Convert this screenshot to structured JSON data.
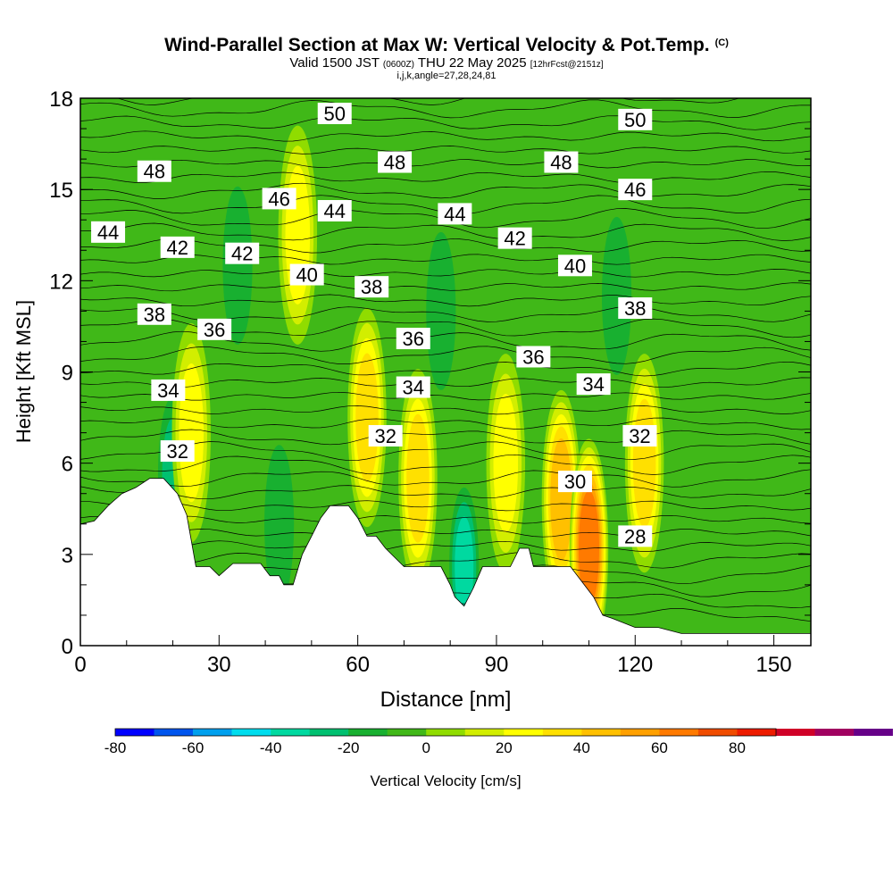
{
  "title": {
    "main": "Wind-Parallel Section at Max W: Vertical Velocity & Pot.Temp.",
    "copyright": "(C)",
    "valid_prefix": "Valid 1500 JST",
    "valid_utc": "(0600Z)",
    "valid_day": "THU 22 May 2025",
    "forecast": "[12hrFcst@2151z]",
    "params": "i,j,k,angle=27,28,24,81"
  },
  "chart_data": {
    "type": "heatmap",
    "xlabel": "Distance [nm]",
    "ylabel": "Height [Kft MSL]",
    "xlim": [
      0,
      158
    ],
    "ylim": [
      0,
      18
    ],
    "x_ticks": [
      0,
      30,
      60,
      90,
      120,
      150
    ],
    "y_ticks": [
      0,
      3,
      6,
      9,
      12,
      15,
      18
    ],
    "colorbar": {
      "label": "Vertical Velocity [cm/s]",
      "tick_labels": [
        "-80",
        "-60",
        "-40",
        "-20",
        "0",
        "20",
        "40",
        "60",
        "80"
      ],
      "tick_values": [
        -80,
        -60,
        -40,
        -20,
        0,
        20,
        40,
        60,
        80
      ],
      "range": [
        -80,
        90
      ],
      "bin_size": 10,
      "colors": [
        "#0000ff",
        "#0055ee",
        "#00a0ee",
        "#00ddee",
        "#00d9a0",
        "#00c070",
        "#18b030",
        "#40b818",
        "#90dc00",
        "#d2ee00",
        "#ffff00",
        "#ffe000",
        "#ffc000",
        "#ffa000",
        "#ff7a00",
        "#f04c00",
        "#ee1c00",
        "#d00028",
        "#a00060",
        "#660088"
      ]
    },
    "terrain_kft": [
      [
        0,
        4.0
      ],
      [
        3,
        4.1
      ],
      [
        6,
        4.6
      ],
      [
        9,
        5.0
      ],
      [
        12,
        5.2
      ],
      [
        15,
        5.5
      ],
      [
        18,
        5.5
      ],
      [
        21,
        5.0
      ],
      [
        23,
        4.3
      ],
      [
        25,
        2.6
      ],
      [
        28,
        2.6
      ],
      [
        30,
        2.3
      ],
      [
        33,
        2.7
      ],
      [
        39,
        2.7
      ],
      [
        41,
        2.3
      ],
      [
        43,
        2.3
      ],
      [
        44,
        2.0
      ],
      [
        46,
        2.0
      ],
      [
        48,
        3.0
      ],
      [
        50,
        3.6
      ],
      [
        52,
        4.2
      ],
      [
        54,
        4.6
      ],
      [
        58,
        4.6
      ],
      [
        60,
        4.2
      ],
      [
        62,
        3.6
      ],
      [
        64,
        3.6
      ],
      [
        66,
        3.2
      ],
      [
        70,
        2.6
      ],
      [
        74,
        2.6
      ],
      [
        78,
        2.6
      ],
      [
        80,
        2.0
      ],
      [
        81,
        1.6
      ],
      [
        83,
        1.3
      ],
      [
        85,
        1.9
      ],
      [
        87,
        2.6
      ],
      [
        93,
        2.6
      ],
      [
        95,
        3.2
      ],
      [
        97,
        3.2
      ],
      [
        98,
        2.6
      ],
      [
        106,
        2.6
      ],
      [
        109,
        2.0
      ],
      [
        111,
        1.6
      ],
      [
        113,
        1.0
      ],
      [
        115,
        0.9
      ],
      [
        120,
        0.6
      ],
      [
        125,
        0.6
      ],
      [
        130,
        0.4
      ],
      [
        158,
        0.4
      ]
    ],
    "updrafts": [
      {
        "x": 24,
        "y": 7.0,
        "peak": 30
      },
      {
        "x": 47,
        "y": 13.5,
        "peak": 25
      },
      {
        "x": 62,
        "y": 7.5,
        "peak": 40
      },
      {
        "x": 73,
        "y": 5.5,
        "peak": 32
      },
      {
        "x": 92,
        "y": 6.0,
        "peak": 28
      },
      {
        "x": 104,
        "y": 4.8,
        "peak": 42
      },
      {
        "x": 110,
        "y": 3.2,
        "peak": 62
      },
      {
        "x": 122,
        "y": 6.0,
        "peak": 32
      }
    ],
    "downdrafts": [
      {
        "x": 20,
        "y": 5.6,
        "peak": -28
      },
      {
        "x": 34,
        "y": 12.5,
        "peak": -16
      },
      {
        "x": 43,
        "y": 4.0,
        "peak": -16
      },
      {
        "x": 78,
        "y": 11.0,
        "peak": -20
      },
      {
        "x": 83,
        "y": 2.6,
        "peak": -34
      },
      {
        "x": 116,
        "y": 11.5,
        "peak": -16
      }
    ],
    "theta_labels": [
      {
        "text": "50",
        "x": 55,
        "y": 17.5
      },
      {
        "text": "50",
        "x": 120,
        "y": 17.3
      },
      {
        "text": "48",
        "x": 16,
        "y": 15.6
      },
      {
        "text": "48",
        "x": 68,
        "y": 15.9
      },
      {
        "text": "48",
        "x": 104,
        "y": 15.9
      },
      {
        "text": "46",
        "x": 43,
        "y": 14.7
      },
      {
        "text": "46",
        "x": 120,
        "y": 15.0
      },
      {
        "text": "44",
        "x": 6,
        "y": 13.6
      },
      {
        "text": "44",
        "x": 55,
        "y": 14.3
      },
      {
        "text": "44",
        "x": 81,
        "y": 14.2
      },
      {
        "text": "42",
        "x": 21,
        "y": 13.1
      },
      {
        "text": "42",
        "x": 35,
        "y": 12.9
      },
      {
        "text": "42",
        "x": 94,
        "y": 13.4
      },
      {
        "text": "40",
        "x": 49,
        "y": 12.2
      },
      {
        "text": "40",
        "x": 107,
        "y": 12.5
      },
      {
        "text": "38",
        "x": 16,
        "y": 10.9
      },
      {
        "text": "38",
        "x": 63,
        "y": 11.8
      },
      {
        "text": "38",
        "x": 120,
        "y": 11.1
      },
      {
        "text": "36",
        "x": 29,
        "y": 10.4
      },
      {
        "text": "36",
        "x": 72,
        "y": 10.1
      },
      {
        "text": "36",
        "x": 98,
        "y": 9.5
      },
      {
        "text": "34",
        "x": 19,
        "y": 8.4
      },
      {
        "text": "34",
        "x": 72,
        "y": 8.5
      },
      {
        "text": "34",
        "x": 111,
        "y": 8.6
      },
      {
        "text": "32",
        "x": 21,
        "y": 6.4
      },
      {
        "text": "32",
        "x": 66,
        "y": 6.9
      },
      {
        "text": "32",
        "x": 121,
        "y": 6.9
      },
      {
        "text": "30",
        "x": 107,
        "y": 5.4
      },
      {
        "text": "28",
        "x": 120,
        "y": 3.6
      }
    ]
  }
}
